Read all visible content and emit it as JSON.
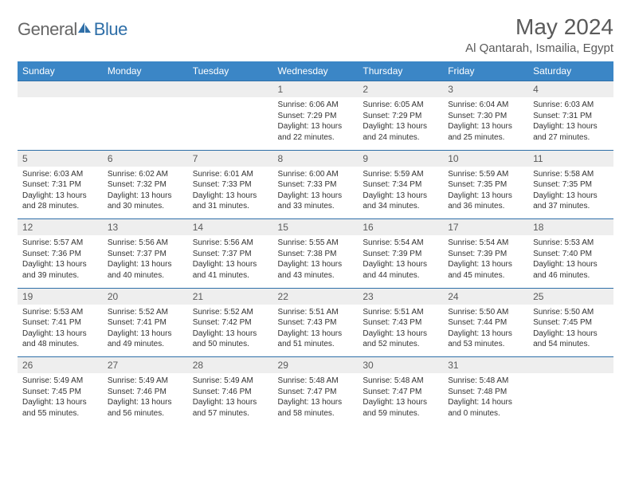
{
  "logo": {
    "text1": "General",
    "text2": "Blue"
  },
  "title": "May 2024",
  "location": "Al Qantarah, Ismailia, Egypt",
  "colors": {
    "header_bg": "#3b86c6",
    "border": "#2f6fa8",
    "daynum_bg": "#eeeeee",
    "text_gray": "#5a5a5a"
  },
  "weekdays": [
    "Sunday",
    "Monday",
    "Tuesday",
    "Wednesday",
    "Thursday",
    "Friday",
    "Saturday"
  ],
  "weeks": [
    [
      null,
      null,
      null,
      {
        "n": "1",
        "sr": "6:06 AM",
        "ss": "7:29 PM",
        "dl": "13 hours and 22 minutes."
      },
      {
        "n": "2",
        "sr": "6:05 AM",
        "ss": "7:29 PM",
        "dl": "13 hours and 24 minutes."
      },
      {
        "n": "3",
        "sr": "6:04 AM",
        "ss": "7:30 PM",
        "dl": "13 hours and 25 minutes."
      },
      {
        "n": "4",
        "sr": "6:03 AM",
        "ss": "7:31 PM",
        "dl": "13 hours and 27 minutes."
      }
    ],
    [
      {
        "n": "5",
        "sr": "6:03 AM",
        "ss": "7:31 PM",
        "dl": "13 hours and 28 minutes."
      },
      {
        "n": "6",
        "sr": "6:02 AM",
        "ss": "7:32 PM",
        "dl": "13 hours and 30 minutes."
      },
      {
        "n": "7",
        "sr": "6:01 AM",
        "ss": "7:33 PM",
        "dl": "13 hours and 31 minutes."
      },
      {
        "n": "8",
        "sr": "6:00 AM",
        "ss": "7:33 PM",
        "dl": "13 hours and 33 minutes."
      },
      {
        "n": "9",
        "sr": "5:59 AM",
        "ss": "7:34 PM",
        "dl": "13 hours and 34 minutes."
      },
      {
        "n": "10",
        "sr": "5:59 AM",
        "ss": "7:35 PM",
        "dl": "13 hours and 36 minutes."
      },
      {
        "n": "11",
        "sr": "5:58 AM",
        "ss": "7:35 PM",
        "dl": "13 hours and 37 minutes."
      }
    ],
    [
      {
        "n": "12",
        "sr": "5:57 AM",
        "ss": "7:36 PM",
        "dl": "13 hours and 39 minutes."
      },
      {
        "n": "13",
        "sr": "5:56 AM",
        "ss": "7:37 PM",
        "dl": "13 hours and 40 minutes."
      },
      {
        "n": "14",
        "sr": "5:56 AM",
        "ss": "7:37 PM",
        "dl": "13 hours and 41 minutes."
      },
      {
        "n": "15",
        "sr": "5:55 AM",
        "ss": "7:38 PM",
        "dl": "13 hours and 43 minutes."
      },
      {
        "n": "16",
        "sr": "5:54 AM",
        "ss": "7:39 PM",
        "dl": "13 hours and 44 minutes."
      },
      {
        "n": "17",
        "sr": "5:54 AM",
        "ss": "7:39 PM",
        "dl": "13 hours and 45 minutes."
      },
      {
        "n": "18",
        "sr": "5:53 AM",
        "ss": "7:40 PM",
        "dl": "13 hours and 46 minutes."
      }
    ],
    [
      {
        "n": "19",
        "sr": "5:53 AM",
        "ss": "7:41 PM",
        "dl": "13 hours and 48 minutes."
      },
      {
        "n": "20",
        "sr": "5:52 AM",
        "ss": "7:41 PM",
        "dl": "13 hours and 49 minutes."
      },
      {
        "n": "21",
        "sr": "5:52 AM",
        "ss": "7:42 PM",
        "dl": "13 hours and 50 minutes."
      },
      {
        "n": "22",
        "sr": "5:51 AM",
        "ss": "7:43 PM",
        "dl": "13 hours and 51 minutes."
      },
      {
        "n": "23",
        "sr": "5:51 AM",
        "ss": "7:43 PM",
        "dl": "13 hours and 52 minutes."
      },
      {
        "n": "24",
        "sr": "5:50 AM",
        "ss": "7:44 PM",
        "dl": "13 hours and 53 minutes."
      },
      {
        "n": "25",
        "sr": "5:50 AM",
        "ss": "7:45 PM",
        "dl": "13 hours and 54 minutes."
      }
    ],
    [
      {
        "n": "26",
        "sr": "5:49 AM",
        "ss": "7:45 PM",
        "dl": "13 hours and 55 minutes."
      },
      {
        "n": "27",
        "sr": "5:49 AM",
        "ss": "7:46 PM",
        "dl": "13 hours and 56 minutes."
      },
      {
        "n": "28",
        "sr": "5:49 AM",
        "ss": "7:46 PM",
        "dl": "13 hours and 57 minutes."
      },
      {
        "n": "29",
        "sr": "5:48 AM",
        "ss": "7:47 PM",
        "dl": "13 hours and 58 minutes."
      },
      {
        "n": "30",
        "sr": "5:48 AM",
        "ss": "7:47 PM",
        "dl": "13 hours and 59 minutes."
      },
      {
        "n": "31",
        "sr": "5:48 AM",
        "ss": "7:48 PM",
        "dl": "14 hours and 0 minutes."
      },
      null
    ]
  ],
  "labels": {
    "sunrise": "Sunrise:",
    "sunset": "Sunset:",
    "daylight": "Daylight:"
  }
}
